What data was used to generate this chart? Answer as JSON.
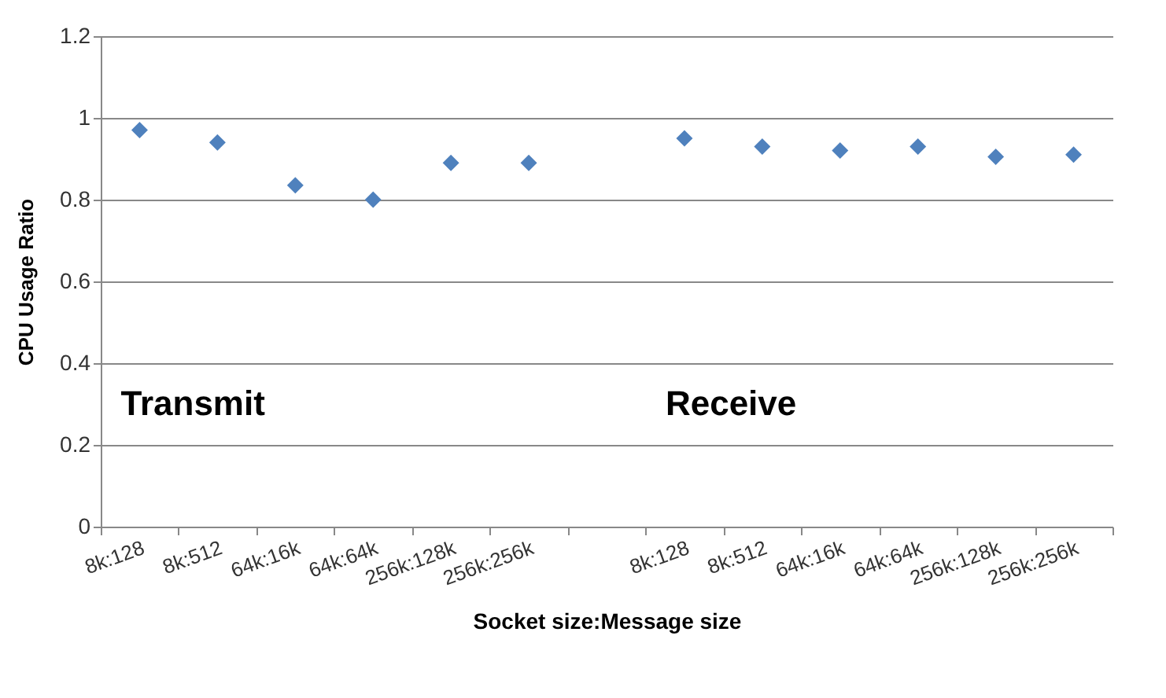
{
  "chart_data": {
    "type": "scatter",
    "xlabel": "Socket size:Message size",
    "ylabel": "CPU Usage Ratio",
    "categories": [
      "8k:128",
      "8k:512",
      "64k:16k",
      "64k:64k",
      "256k:128k",
      "256k:256k",
      null,
      "8k:128",
      "8k:512",
      "64k:16k",
      "64k:64k",
      "256k:128k",
      "256k:256k"
    ],
    "series": [
      {
        "color": "#4f81bd",
        "values": [
          0.97,
          0.94,
          0.835,
          0.8,
          0.89,
          0.89,
          null,
          0.95,
          0.93,
          0.92,
          0.93,
          0.905,
          0.91
        ]
      }
    ],
    "ylim": [
      0,
      1.2
    ],
    "yticks": [
      0,
      0.2,
      0.4,
      0.6,
      0.8,
      1,
      1.2
    ],
    "grid": "y",
    "marker": "diamond",
    "annotations": [
      "Transmit",
      "Receive"
    ]
  }
}
